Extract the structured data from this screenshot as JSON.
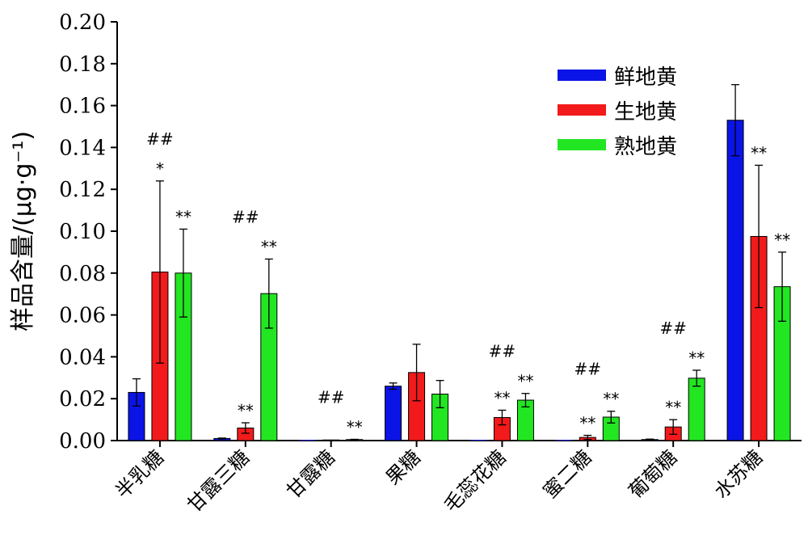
{
  "chart_data": {
    "type": "bar",
    "ylabel": "样品含量/(μg·g⁻¹)",
    "ylim": [
      0,
      0.2
    ],
    "yticks": [
      "0.00",
      "0.02",
      "0.04",
      "0.06",
      "0.08",
      "0.10",
      "0.12",
      "0.14",
      "0.16",
      "0.18",
      "0.20"
    ],
    "categories": [
      "半乳糖",
      "甘露三糖",
      "甘露糖",
      "果糖",
      "毛蕊花糖",
      "蜜二糖",
      "葡萄糖",
      "水苏糖"
    ],
    "legend_position": "top-right",
    "series": [
      {
        "name": "鲜地黄",
        "color": "#0a14e6",
        "values": [
          0.023,
          0.001,
          0.0,
          0.026,
          0.0,
          0.0,
          0.0005,
          0.153
        ],
        "errors": [
          0.0065,
          0.0002,
          0.0,
          0.0015,
          0.0,
          0.0,
          0.0002,
          0.017
        ],
        "sig": [
          "",
          "",
          "",
          "",
          "",
          "",
          "",
          ""
        ]
      },
      {
        "name": "生地黄",
        "color": "#f21a1a",
        "values": [
          0.0805,
          0.006,
          0.0003,
          0.0325,
          0.011,
          0.0015,
          0.0065,
          0.0975
        ],
        "errors": [
          0.0435,
          0.0025,
          0.0,
          0.0135,
          0.0035,
          0.001,
          0.0035,
          0.034
        ],
        "sig": [
          "*",
          "**",
          "",
          "",
          "**",
          "**",
          "**",
          "**"
        ]
      },
      {
        "name": "熟地黄",
        "color": "#22e622",
        "values": [
          0.08,
          0.0702,
          0.0005,
          0.0222,
          0.0193,
          0.0112,
          0.0298,
          0.0735
        ],
        "errors": [
          0.021,
          0.0165,
          0.0001,
          0.0065,
          0.0032,
          0.0028,
          0.0038,
          0.0165
        ],
        "sig": [
          "**",
          "**",
          "**",
          "",
          "**",
          "**",
          "**",
          "**"
        ]
      }
    ],
    "group_annotations": [
      "##",
      "##",
      "##",
      "",
      "##",
      "##",
      "##",
      ""
    ]
  }
}
